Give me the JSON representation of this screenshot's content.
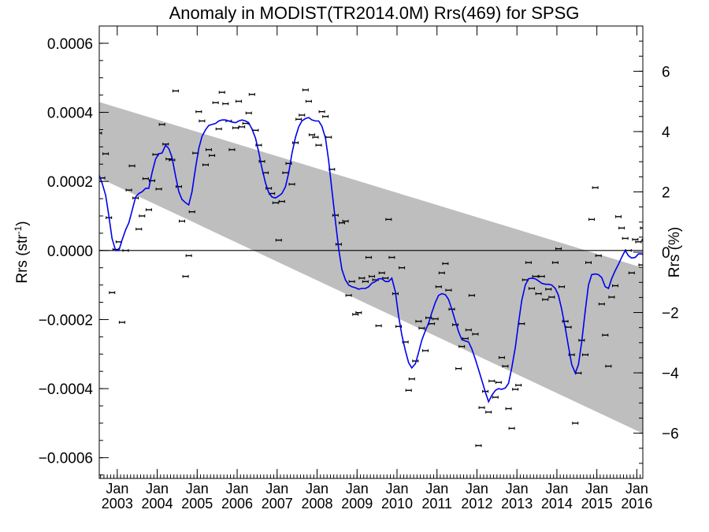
{
  "chart_data": {
    "type": "scatter",
    "title": "Anomaly in MODIST(TR2014.0M) Rrs(469) for SPSG",
    "ylabel_left": "Rrs (str",
    "ylabel_left_sup": "-1",
    "ylabel_left_close": ")",
    "ylabel_right": "Rrs (%)",
    "xlim": [
      2002.55,
      2016.15
    ],
    "ylim_left": [
      -0.00066,
      0.00065
    ],
    "ylim_right": [
      -7.5,
      7.5
    ],
    "left_ticks": [
      {
        "v": 0.0006,
        "label": "0.0006"
      },
      {
        "v": 0.0004,
        "label": "0.0004"
      },
      {
        "v": 0.0002,
        "label": "0.0002"
      },
      {
        "v": 0.0,
        "label": "0.0000"
      },
      {
        "v": -0.0002,
        "label": "−0.0002"
      },
      {
        "v": -0.0004,
        "label": "−0.0004"
      },
      {
        "v": -0.0006,
        "label": "−0.0006"
      }
    ],
    "right_ticks": [
      {
        "v": 6,
        "label": "6"
      },
      {
        "v": 4,
        "label": "4"
      },
      {
        "v": 2,
        "label": "2"
      },
      {
        "v": 0,
        "label": "0"
      },
      {
        "v": -2,
        "label": "−2"
      },
      {
        "v": -4,
        "label": "−4"
      },
      {
        "v": -6,
        "label": "−6"
      }
    ],
    "x_ticks": [
      {
        "v": 2003.0,
        "month": "Jan",
        "year": "2003"
      },
      {
        "v": 2004.0,
        "month": "Jan",
        "year": "2004"
      },
      {
        "v": 2005.0,
        "month": "Jan",
        "year": "2005"
      },
      {
        "v": 2006.0,
        "month": "Jan",
        "year": "2006"
      },
      {
        "v": 2007.0,
        "month": "Jan",
        "year": "2007"
      },
      {
        "v": 2008.0,
        "month": "Jan",
        "year": "2008"
      },
      {
        "v": 2009.0,
        "month": "Jan",
        "year": "2009"
      },
      {
        "v": 2010.0,
        "month": "Jan",
        "year": "2010"
      },
      {
        "v": 2011.0,
        "month": "Jan",
        "year": "2011"
      },
      {
        "v": 2012.0,
        "month": "Jan",
        "year": "2012"
      },
      {
        "v": 2013.0,
        "month": "Jan",
        "year": "2013"
      },
      {
        "v": 2014.0,
        "month": "Jan",
        "year": "2014"
      },
      {
        "v": 2015.0,
        "month": "Jan",
        "year": "2015"
      },
      {
        "v": 2016.0,
        "month": "Jan",
        "year": "2016"
      }
    ],
    "trend_band": {
      "x": [
        2002.55,
        2016.15
      ],
      "upper": [
        0.00043,
        -5e-05
      ],
      "lower": [
        0.00021,
        -0.00053
      ]
    },
    "zero_line": 0,
    "colors": {
      "points": "#000000",
      "smooth": "#0000ee",
      "band": "#bebebe",
      "zero": "#000000"
    },
    "points": [
      [
        2002.54,
        0.00034
      ],
      [
        2002.62,
        0.00021
      ],
      [
        2002.71,
        0.00028
      ],
      [
        2002.79,
        9.5e-05
      ],
      [
        2002.87,
        -0.000122
      ],
      [
        2002.96,
        3e-06
      ],
      [
        2003.04,
        2.5e-05
      ],
      [
        2003.12,
        -0.000208
      ],
      [
        2003.21,
        0.0
      ],
      [
        2003.29,
        0.000175
      ],
      [
        2003.37,
        0.000245
      ],
      [
        2003.46,
        0.000152
      ],
      [
        2003.54,
        6.2e-05
      ],
      [
        2003.62,
        0.0001
      ],
      [
        2003.71,
        0.000208
      ],
      [
        2003.79,
        0.000118
      ],
      [
        2003.87,
        0.000202
      ],
      [
        2003.96,
        0.000278
      ],
      [
        2004.04,
        0.000178
      ],
      [
        2004.12,
        0.000365
      ],
      [
        2004.21,
        0.000308
      ],
      [
        2004.29,
        0.000265
      ],
      [
        2004.37,
        0.000262
      ],
      [
        2004.46,
        0.000462
      ],
      [
        2004.54,
        0.000185
      ],
      [
        2004.62,
        8.5e-05
      ],
      [
        2004.71,
        -7.5e-05
      ],
      [
        2004.79,
        -1.5e-05
      ],
      [
        2004.87,
        0.000112
      ],
      [
        2004.96,
        0.000282
      ],
      [
        2005.04,
        0.000402
      ],
      [
        2005.12,
        0.000375
      ],
      [
        2005.21,
        0.000248
      ],
      [
        2005.29,
        0.000292
      ],
      [
        2005.37,
        0.000275
      ],
      [
        2005.46,
        0.000428
      ],
      [
        2005.54,
        0.000352
      ],
      [
        2005.62,
        0.000458
      ],
      [
        2005.71,
        0.000425
      ],
      [
        2005.79,
        0.000375
      ],
      [
        2005.87,
        0.000292
      ],
      [
        2005.96,
        0.000355
      ],
      [
        2006.04,
        0.000432
      ],
      [
        2006.12,
        0.000358
      ],
      [
        2006.21,
        0.000368
      ],
      [
        2006.29,
        0.000398
      ],
      [
        2006.37,
        0.000452
      ],
      [
        2006.46,
        0.000348
      ],
      [
        2006.54,
        0.000305
      ],
      [
        2006.62,
        0.000258
      ],
      [
        2006.71,
        0.000225
      ],
      [
        2006.79,
        0.00018
      ],
      [
        2006.87,
        0.000165
      ],
      [
        2006.96,
        0.000138
      ],
      [
        2007.04,
        3e-05
      ],
      [
        2007.12,
        0.000142
      ],
      [
        2007.21,
        0.000225
      ],
      [
        2007.29,
        0.000252
      ],
      [
        2007.37,
        0.000192
      ],
      [
        2007.46,
        0.000312
      ],
      [
        2007.54,
        0.00038
      ],
      [
        2007.62,
        0.000392
      ],
      [
        2007.71,
        0.000465
      ],
      [
        2007.79,
        0.000432
      ],
      [
        2007.87,
        0.000335
      ],
      [
        2007.96,
        0.000328
      ],
      [
        2008.04,
        0.000305
      ],
      [
        2008.12,
        0.000402
      ],
      [
        2008.21,
        0.000388
      ],
      [
        2008.29,
        0.000328
      ],
      [
        2008.37,
        0.000235
      ],
      [
        2008.46,
        0.000102
      ],
      [
        2008.54,
        1.8e-05
      ],
      [
        2008.62,
        8e-05
      ],
      [
        2008.71,
        8.5e-05
      ],
      [
        2008.79,
        -0.00013
      ],
      [
        2008.87,
        -9e-05
      ],
      [
        2008.96,
        -0.000185
      ],
      [
        2009.04,
        -0.00018
      ],
      [
        2009.12,
        -8e-05
      ],
      [
        2009.21,
        -9e-05
      ],
      [
        2009.29,
        -2e-05
      ],
      [
        2009.37,
        -7.5e-05
      ],
      [
        2009.46,
        -8.5e-05
      ],
      [
        2009.54,
        -0.000218
      ],
      [
        2009.62,
        -6.5e-05
      ],
      [
        2009.71,
        -8e-05
      ],
      [
        2009.79,
        9e-05
      ],
      [
        2009.87,
        -2e-05
      ],
      [
        2009.96,
        -0.000125
      ],
      [
        2010.04,
        -0.00022
      ],
      [
        2010.12,
        -5e-05
      ],
      [
        2010.21,
        -0.000265
      ],
      [
        2010.29,
        -0.000405
      ],
      [
        2010.37,
        -0.000372
      ],
      [
        2010.46,
        -0.00032
      ],
      [
        2010.54,
        -0.000205
      ],
      [
        2010.62,
        -0.000225
      ],
      [
        2010.71,
        -0.00029
      ],
      [
        2010.79,
        -0.000195
      ],
      [
        2010.87,
        -0.000212
      ],
      [
        2010.96,
        -0.000198
      ],
      [
        2011.04,
        -0.000105
      ],
      [
        2011.12,
        -6.5e-05
      ],
      [
        2011.21,
        -3.8e-05
      ],
      [
        2011.29,
        -0.000115
      ],
      [
        2011.37,
        -0.00017
      ],
      [
        2011.46,
        -0.000215
      ],
      [
        2011.54,
        -0.000342
      ],
      [
        2011.62,
        -0.000278
      ],
      [
        2011.71,
        -0.000255
      ],
      [
        2011.79,
        -0.00023
      ],
      [
        2011.87,
        -0.00013
      ],
      [
        2011.96,
        -0.000242
      ],
      [
        2012.04,
        -0.000565
      ],
      [
        2012.12,
        -0.000455
      ],
      [
        2012.21,
        -0.000408
      ],
      [
        2012.29,
        -0.000468
      ],
      [
        2012.37,
        -0.000378
      ],
      [
        2012.46,
        -0.000425
      ],
      [
        2012.54,
        -0.000382
      ],
      [
        2012.62,
        -0.00031
      ],
      [
        2012.71,
        -0.000335
      ],
      [
        2012.79,
        -0.000458
      ],
      [
        2012.87,
        -0.000515
      ],
      [
        2012.96,
        -0.000402
      ],
      [
        2013.04,
        -0.00039
      ],
      [
        2013.12,
        -0.000212
      ],
      [
        2013.21,
        -8.5e-05
      ],
      [
        2013.29,
        -3.5e-05
      ],
      [
        2013.37,
        -0.00011
      ],
      [
        2013.46,
        -7.5e-05
      ],
      [
        2013.54,
        -0.000125
      ],
      [
        2013.62,
        -7.5e-05
      ],
      [
        2013.71,
        -0.000142
      ],
      [
        2013.79,
        -0.000112
      ],
      [
        2013.87,
        -0.000135
      ],
      [
        2013.96,
        -3.5e-05
      ],
      [
        2014.04,
        5e-06
      ],
      [
        2014.12,
        -0.000105
      ],
      [
        2014.21,
        -0.000205
      ],
      [
        2014.29,
        -0.000222
      ],
      [
        2014.37,
        -0.000302
      ],
      [
        2014.46,
        -0.0005
      ],
      [
        2014.54,
        -0.000355
      ],
      [
        2014.62,
        -0.00026
      ],
      [
        2014.71,
        -0.000302
      ],
      [
        2014.79,
        -3.5e-05
      ],
      [
        2014.87,
        9e-05
      ],
      [
        2014.96,
        0.000182
      ],
      [
        2015.04,
        -1.5e-05
      ],
      [
        2015.12,
        -0.000155
      ],
      [
        2015.21,
        -0.000245
      ],
      [
        2015.29,
        -0.000335
      ],
      [
        2015.37,
        -0.000135
      ],
      [
        2015.46,
        -0.000102
      ],
      [
        2015.54,
        9.8e-05
      ],
      [
        2015.62,
        6.5e-05
      ],
      [
        2015.71,
        3.5e-05
      ],
      [
        2015.79,
        0.0
      ],
      [
        2015.87,
        -6.5e-05
      ],
      [
        2015.96,
        3.2e-05
      ],
      [
        2016.04,
        2.5e-05
      ],
      [
        2016.12,
        -4.2e-05
      ],
      [
        2016.16,
        6.5e-05
      ],
      [
        2016.2,
        3e-05
      ],
      [
        2016.25,
        -5.2e-05
      ]
    ],
    "smooth": [
      [
        2002.54,
        0.00022
      ],
      [
        2002.62,
        0.000195
      ],
      [
        2002.71,
        0.00016
      ],
      [
        2002.79,
        0.0001
      ],
      [
        2002.87,
        3.5e-05
      ],
      [
        2002.96,
        0.0
      ],
      [
        2003.04,
        0.0
      ],
      [
        2003.12,
        3e-05
      ],
      [
        2003.21,
        6e-05
      ],
      [
        2003.29,
        8e-05
      ],
      [
        2003.37,
        0.000115
      ],
      [
        2003.46,
        0.000155
      ],
      [
        2003.54,
        0.000165
      ],
      [
        2003.62,
        0.00017
      ],
      [
        2003.71,
        0.00018
      ],
      [
        2003.79,
        0.00018
      ],
      [
        2003.87,
        0.000225
      ],
      [
        2003.96,
        0.000265
      ],
      [
        2004.04,
        0.00028
      ],
      [
        2004.12,
        0.000282
      ],
      [
        2004.21,
        0.000305
      ],
      [
        2004.29,
        0.000295
      ],
      [
        2004.37,
        0.00027
      ],
      [
        2004.46,
        0.000215
      ],
      [
        2004.54,
        0.00017
      ],
      [
        2004.62,
        0.000148
      ],
      [
        2004.71,
        0.000138
      ],
      [
        2004.79,
        0.000132
      ],
      [
        2004.87,
        0.00017
      ],
      [
        2004.96,
        0.00024
      ],
      [
        2005.04,
        0.000295
      ],
      [
        2005.12,
        0.00033
      ],
      [
        2005.21,
        0.00035
      ],
      [
        2005.29,
        0.000362
      ],
      [
        2005.37,
        0.000365
      ],
      [
        2005.46,
        0.000368
      ],
      [
        2005.54,
        0.000375
      ],
      [
        2005.62,
        0.000378
      ],
      [
        2005.71,
        0.000378
      ],
      [
        2005.79,
        0.000375
      ],
      [
        2005.87,
        0.000372
      ],
      [
        2005.96,
        0.00037
      ],
      [
        2006.04,
        0.000375
      ],
      [
        2006.12,
        0.000378
      ],
      [
        2006.21,
        0.000375
      ],
      [
        2006.29,
        0.00037
      ],
      [
        2006.37,
        0.000352
      ],
      [
        2006.46,
        0.000325
      ],
      [
        2006.54,
        0.000285
      ],
      [
        2006.62,
        0.000238
      ],
      [
        2006.71,
        0.000195
      ],
      [
        2006.79,
        0.000168
      ],
      [
        2006.87,
        0.000155
      ],
      [
        2006.96,
        0.000152
      ],
      [
        2007.04,
        0.000158
      ],
      [
        2007.12,
        0.000165
      ],
      [
        2007.21,
        0.000185
      ],
      [
        2007.29,
        0.000225
      ],
      [
        2007.37,
        0.00028
      ],
      [
        2007.46,
        0.000328
      ],
      [
        2007.54,
        0.000358
      ],
      [
        2007.62,
        0.000375
      ],
      [
        2007.71,
        0.000382
      ],
      [
        2007.79,
        0.000385
      ],
      [
        2007.87,
        0.000378
      ],
      [
        2007.96,
        0.000375
      ],
      [
        2008.04,
        0.000375
      ],
      [
        2008.12,
        0.00036
      ],
      [
        2008.21,
        0.000325
      ],
      [
        2008.29,
        0.00026
      ],
      [
        2008.37,
        0.000175
      ],
      [
        2008.46,
        8.5e-05
      ],
      [
        2008.54,
        5e-06
      ],
      [
        2008.62,
        -5.5e-05
      ],
      [
        2008.71,
        -8.5e-05
      ],
      [
        2008.79,
        -0.0001
      ],
      [
        2008.87,
        -0.000105
      ],
      [
        2008.96,
        -0.000108
      ],
      [
        2009.04,
        -0.000112
      ],
      [
        2009.12,
        -0.00011
      ],
      [
        2009.21,
        -0.00011
      ],
      [
        2009.29,
        -0.000105
      ],
      [
        2009.37,
        -9.5e-05
      ],
      [
        2009.46,
        -9e-05
      ],
      [
        2009.54,
        -8.2e-05
      ],
      [
        2009.62,
        -8.2e-05
      ],
      [
        2009.71,
        -9e-05
      ],
      [
        2009.79,
        -9e-05
      ],
      [
        2009.87,
        -8e-05
      ],
      [
        2009.96,
        -0.00012
      ],
      [
        2010.04,
        -0.00019
      ],
      [
        2010.12,
        -0.000245
      ],
      [
        2010.21,
        -0.00029
      ],
      [
        2010.29,
        -0.000325
      ],
      [
        2010.37,
        -0.00034
      ],
      [
        2010.46,
        -0.000328
      ],
      [
        2010.54,
        -0.000295
      ],
      [
        2010.62,
        -0.00026
      ],
      [
        2010.71,
        -0.000232
      ],
      [
        2010.79,
        -0.00021
      ],
      [
        2010.87,
        -0.00018
      ],
      [
        2010.96,
        -0.00015
      ],
      [
        2011.04,
        -0.00013
      ],
      [
        2011.12,
        -0.000125
      ],
      [
        2011.21,
        -0.000128
      ],
      [
        2011.29,
        -0.000142
      ],
      [
        2011.37,
        -0.00017
      ],
      [
        2011.46,
        -0.000205
      ],
      [
        2011.54,
        -0.000235
      ],
      [
        2011.62,
        -0.000258
      ],
      [
        2011.71,
        -0.000262
      ],
      [
        2011.79,
        -0.000265
      ],
      [
        2011.87,
        -0.000285
      ],
      [
        2011.96,
        -0.000315
      ],
      [
        2012.04,
        -0.000345
      ],
      [
        2012.12,
        -0.000375
      ],
      [
        2012.21,
        -0.00041
      ],
      [
        2012.29,
        -0.000438
      ],
      [
        2012.37,
        -0.00042
      ],
      [
        2012.46,
        -0.000405
      ],
      [
        2012.54,
        -0.0004
      ],
      [
        2012.62,
        -0.000402
      ],
      [
        2012.71,
        -0.000398
      ],
      [
        2012.79,
        -0.000385
      ],
      [
        2012.87,
        -0.00034
      ],
      [
        2012.96,
        -0.00028
      ],
      [
        2013.04,
        -0.00021
      ],
      [
        2013.12,
        -0.000145
      ],
      [
        2013.21,
        -0.0001
      ],
      [
        2013.29,
        -8.2e-05
      ],
      [
        2013.37,
        -8e-05
      ],
      [
        2013.46,
        -8.2e-05
      ],
      [
        2013.54,
        -8.8e-05
      ],
      [
        2013.62,
        -9.5e-05
      ],
      [
        2013.71,
        -9.8e-05
      ],
      [
        2013.79,
        -9.8e-05
      ],
      [
        2013.87,
        -0.0001
      ],
      [
        2013.96,
        -0.00011
      ],
      [
        2014.04,
        -0.00013
      ],
      [
        2014.12,
        -0.00017
      ],
      [
        2014.21,
        -0.000225
      ],
      [
        2014.29,
        -0.000278
      ],
      [
        2014.37,
        -0.00033
      ],
      [
        2014.46,
        -0.000355
      ],
      [
        2014.54,
        -0.00033
      ],
      [
        2014.62,
        -0.000265
      ],
      [
        2014.71,
        -0.000175
      ],
      [
        2014.79,
        -0.0001
      ],
      [
        2014.87,
        -7e-05
      ],
      [
        2014.96,
        -6.8e-05
      ],
      [
        2015.04,
        -7e-05
      ],
      [
        2015.12,
        -7.8e-05
      ],
      [
        2015.21,
        -0.000105
      ],
      [
        2015.29,
        -0.00011
      ],
      [
        2015.37,
        -8.2e-05
      ],
      [
        2015.46,
        -5.8e-05
      ],
      [
        2015.54,
        -4e-05
      ],
      [
        2015.62,
        -2e-05
      ],
      [
        2015.71,
        0.0
      ],
      [
        2015.79,
        -1.5e-05
      ],
      [
        2015.87,
        -2.2e-05
      ],
      [
        2015.96,
        -2e-05
      ],
      [
        2016.04,
        -1e-05
      ],
      [
        2016.12,
        -1e-05
      ],
      [
        2016.2,
        -1.5e-05
      ],
      [
        2016.25,
        -8e-06
      ]
    ]
  }
}
